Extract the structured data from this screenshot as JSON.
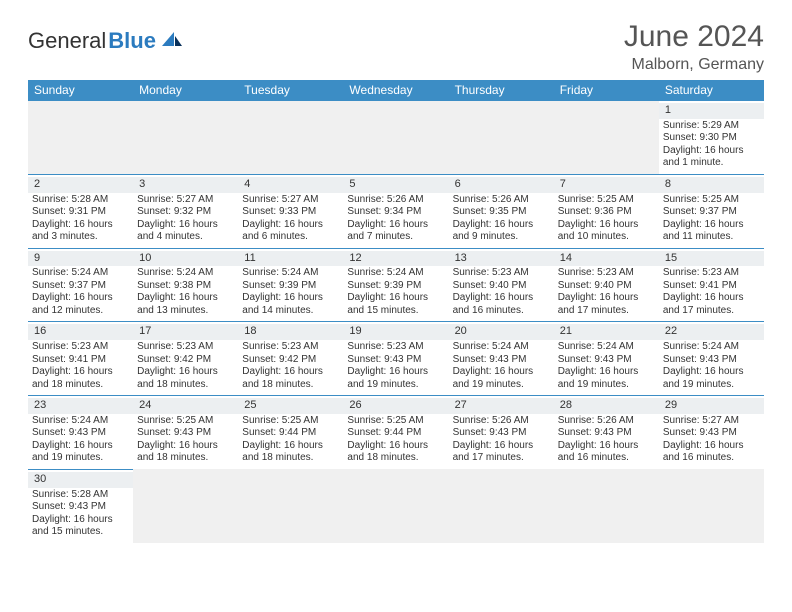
{
  "brand": {
    "part1": "General",
    "part2": "Blue"
  },
  "title": "June 2024",
  "location": "Malborn, Germany",
  "colors": {
    "header_bg": "#3c8dc5",
    "header_text": "#ffffff",
    "daynum_bg": "#eceff1",
    "cell_border": "#3c8dc5",
    "text": "#333333",
    "title_text": "#555555",
    "brand_blue": "#2b7bbf"
  },
  "weekdays": [
    "Sunday",
    "Monday",
    "Tuesday",
    "Wednesday",
    "Thursday",
    "Friday",
    "Saturday"
  ],
  "weeks": [
    [
      null,
      null,
      null,
      null,
      null,
      null,
      {
        "n": "1",
        "sr": "5:29 AM",
        "ss": "9:30 PM",
        "dl": "16 hours and 1 minute."
      }
    ],
    [
      {
        "n": "2",
        "sr": "5:28 AM",
        "ss": "9:31 PM",
        "dl": "16 hours and 3 minutes."
      },
      {
        "n": "3",
        "sr": "5:27 AM",
        "ss": "9:32 PM",
        "dl": "16 hours and 4 minutes."
      },
      {
        "n": "4",
        "sr": "5:27 AM",
        "ss": "9:33 PM",
        "dl": "16 hours and 6 minutes."
      },
      {
        "n": "5",
        "sr": "5:26 AM",
        "ss": "9:34 PM",
        "dl": "16 hours and 7 minutes."
      },
      {
        "n": "6",
        "sr": "5:26 AM",
        "ss": "9:35 PM",
        "dl": "16 hours and 9 minutes."
      },
      {
        "n": "7",
        "sr": "5:25 AM",
        "ss": "9:36 PM",
        "dl": "16 hours and 10 minutes."
      },
      {
        "n": "8",
        "sr": "5:25 AM",
        "ss": "9:37 PM",
        "dl": "16 hours and 11 minutes."
      }
    ],
    [
      {
        "n": "9",
        "sr": "5:24 AM",
        "ss": "9:37 PM",
        "dl": "16 hours and 12 minutes."
      },
      {
        "n": "10",
        "sr": "5:24 AM",
        "ss": "9:38 PM",
        "dl": "16 hours and 13 minutes."
      },
      {
        "n": "11",
        "sr": "5:24 AM",
        "ss": "9:39 PM",
        "dl": "16 hours and 14 minutes."
      },
      {
        "n": "12",
        "sr": "5:24 AM",
        "ss": "9:39 PM",
        "dl": "16 hours and 15 minutes."
      },
      {
        "n": "13",
        "sr": "5:23 AM",
        "ss": "9:40 PM",
        "dl": "16 hours and 16 minutes."
      },
      {
        "n": "14",
        "sr": "5:23 AM",
        "ss": "9:40 PM",
        "dl": "16 hours and 17 minutes."
      },
      {
        "n": "15",
        "sr": "5:23 AM",
        "ss": "9:41 PM",
        "dl": "16 hours and 17 minutes."
      }
    ],
    [
      {
        "n": "16",
        "sr": "5:23 AM",
        "ss": "9:41 PM",
        "dl": "16 hours and 18 minutes."
      },
      {
        "n": "17",
        "sr": "5:23 AM",
        "ss": "9:42 PM",
        "dl": "16 hours and 18 minutes."
      },
      {
        "n": "18",
        "sr": "5:23 AM",
        "ss": "9:42 PM",
        "dl": "16 hours and 18 minutes."
      },
      {
        "n": "19",
        "sr": "5:23 AM",
        "ss": "9:43 PM",
        "dl": "16 hours and 19 minutes."
      },
      {
        "n": "20",
        "sr": "5:24 AM",
        "ss": "9:43 PM",
        "dl": "16 hours and 19 minutes."
      },
      {
        "n": "21",
        "sr": "5:24 AM",
        "ss": "9:43 PM",
        "dl": "16 hours and 19 minutes."
      },
      {
        "n": "22",
        "sr": "5:24 AM",
        "ss": "9:43 PM",
        "dl": "16 hours and 19 minutes."
      }
    ],
    [
      {
        "n": "23",
        "sr": "5:24 AM",
        "ss": "9:43 PM",
        "dl": "16 hours and 19 minutes."
      },
      {
        "n": "24",
        "sr": "5:25 AM",
        "ss": "9:43 PM",
        "dl": "16 hours and 18 minutes."
      },
      {
        "n": "25",
        "sr": "5:25 AM",
        "ss": "9:44 PM",
        "dl": "16 hours and 18 minutes."
      },
      {
        "n": "26",
        "sr": "5:25 AM",
        "ss": "9:44 PM",
        "dl": "16 hours and 18 minutes."
      },
      {
        "n": "27",
        "sr": "5:26 AM",
        "ss": "9:43 PM",
        "dl": "16 hours and 17 minutes."
      },
      {
        "n": "28",
        "sr": "5:26 AM",
        "ss": "9:43 PM",
        "dl": "16 hours and 16 minutes."
      },
      {
        "n": "29",
        "sr": "5:27 AM",
        "ss": "9:43 PM",
        "dl": "16 hours and 16 minutes."
      }
    ],
    [
      {
        "n": "30",
        "sr": "5:28 AM",
        "ss": "9:43 PM",
        "dl": "16 hours and 15 minutes."
      },
      null,
      null,
      null,
      null,
      null,
      null
    ]
  ],
  "labels": {
    "sunrise": "Sunrise:",
    "sunset": "Sunset:",
    "daylight": "Daylight:"
  }
}
